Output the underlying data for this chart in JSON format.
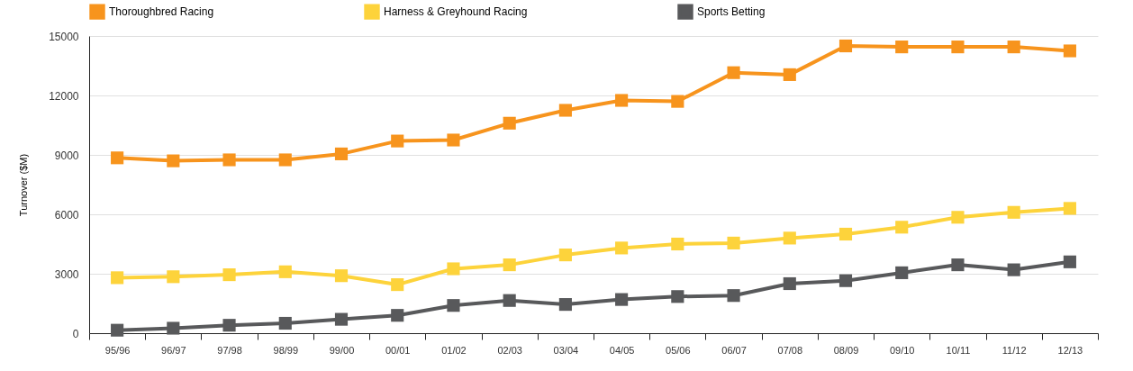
{
  "chart_data": {
    "type": "line",
    "ylabel": "Turnover ($M)",
    "categories": [
      "95/96",
      "96/97",
      "97/98",
      "98/99",
      "99/00",
      "00/01",
      "01/02",
      "02/03",
      "03/04",
      "04/05",
      "05/06",
      "06/07",
      "07/08",
      "08/09",
      "09/10",
      "10/11",
      "11/12",
      "12/13"
    ],
    "ylim": [
      0,
      15000
    ],
    "yticks": [
      0,
      3000,
      6000,
      9000,
      12000,
      15000
    ],
    "grid": "y",
    "legend": "top",
    "marker": "square",
    "line_style": "solid",
    "series": [
      {
        "name": "Thoroughbred Racing",
        "color": "#f7941d",
        "values": [
          8850,
          8700,
          8750,
          8750,
          9050,
          9700,
          9750,
          10600,
          11250,
          11750,
          11700,
          13150,
          13050,
          14500,
          14450,
          14450,
          14450,
          14250
        ]
      },
      {
        "name": "Harness & Greyhound Racing",
        "color": "#fdd33b",
        "values": [
          2800,
          2850,
          2950,
          3100,
          2900,
          2450,
          3250,
          3450,
          3950,
          4300,
          4500,
          4550,
          4800,
          5000,
          5350,
          5850,
          6100,
          6300
        ]
      },
      {
        "name": "Sports Betting",
        "color": "#58595b",
        "values": [
          150,
          250,
          400,
          500,
          700,
          900,
          1400,
          1650,
          1450,
          1700,
          1850,
          1900,
          2500,
          2650,
          3050,
          3450,
          3200,
          3600
        ]
      }
    ]
  }
}
